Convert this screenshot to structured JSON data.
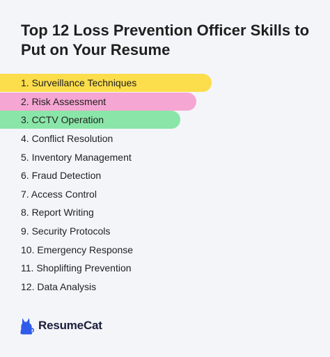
{
  "title": "Top 12 Loss Prevention Officer Skills to Put on Your Resume",
  "skills": [
    {
      "label": "1. Surveillance Techniques",
      "highlight": "#fcdd4b"
    },
    {
      "label": "2. Risk Assessment",
      "highlight": "#f6a6d2"
    },
    {
      "label": "3. CCTV Operation",
      "highlight": "#8ae6a8"
    },
    {
      "label": "4. Conflict Resolution"
    },
    {
      "label": "5. Inventory Management"
    },
    {
      "label": "6. Fraud Detection"
    },
    {
      "label": "7. Access Control"
    },
    {
      "label": "8. Report Writing"
    },
    {
      "label": "9. Security Protocols"
    },
    {
      "label": "10. Emergency Response"
    },
    {
      "label": "11. Shoplifting Prevention"
    },
    {
      "label": "12. Data Analysis"
    }
  ],
  "brand": {
    "name": "ResumeCat",
    "icon": "cat-icon",
    "color": "#2f5bea"
  }
}
